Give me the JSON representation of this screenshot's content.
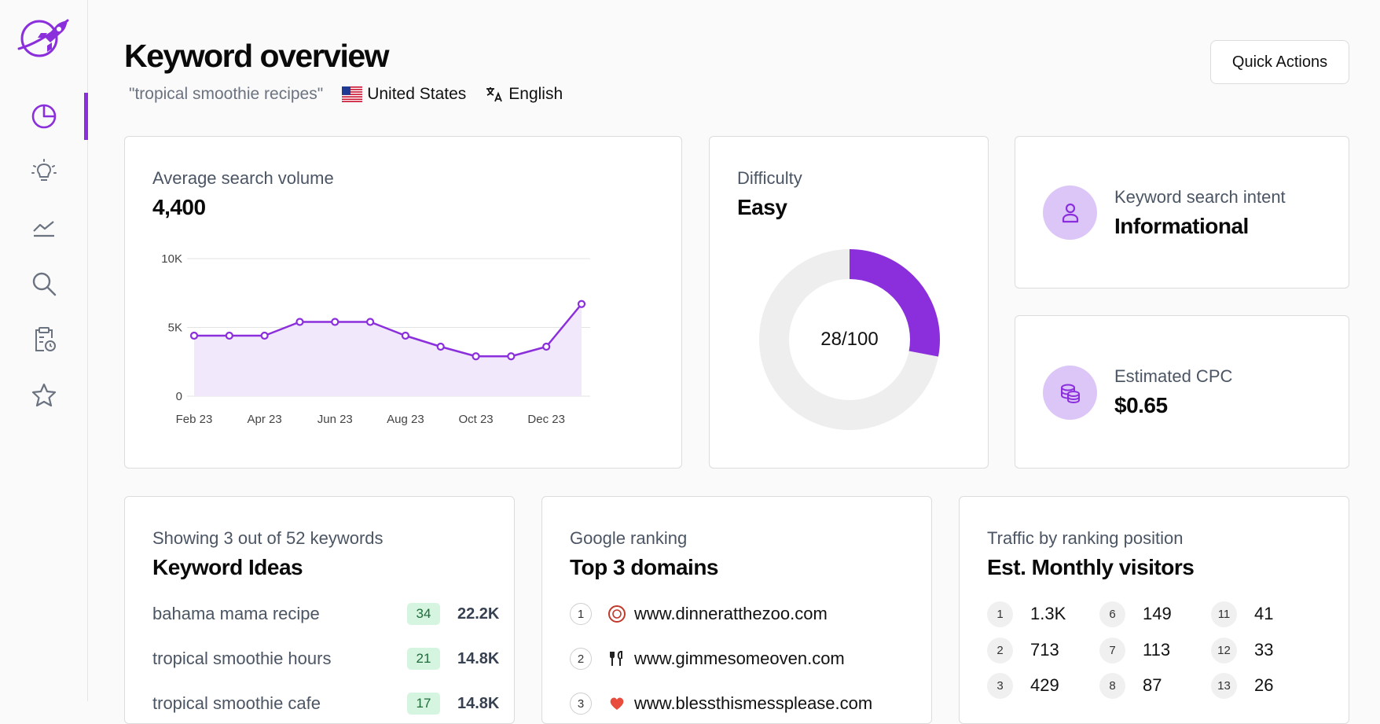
{
  "header": {
    "title": "Keyword overview",
    "keyword": "\"tropical smoothie recipes\"",
    "country": "United States",
    "language": "English",
    "quick_actions": "Quick Actions"
  },
  "sidebar": {
    "items": [
      {
        "name": "overview",
        "icon": "pie-chart-icon",
        "active": true
      },
      {
        "name": "ideas",
        "icon": "lightbulb-icon",
        "active": false
      },
      {
        "name": "trends",
        "icon": "trend-line-icon",
        "active": false
      },
      {
        "name": "search",
        "icon": "search-icon",
        "active": false
      },
      {
        "name": "reports",
        "icon": "clipboard-clock-icon",
        "active": false
      },
      {
        "name": "favorites",
        "icon": "star-icon",
        "active": false
      }
    ],
    "accent": "#8b2fdc"
  },
  "search_volume": {
    "label": "Average search volume",
    "value": "4,400"
  },
  "chart_data": {
    "type": "area",
    "x": [
      "Feb 23",
      "Mar 23",
      "Apr 23",
      "May 23",
      "Jun 23",
      "Jul 23",
      "Aug 23",
      "Sep 23",
      "Oct 23",
      "Nov 23",
      "Dec 23",
      "Jan 24"
    ],
    "x_tick_labels": [
      "Feb 23",
      "Apr 23",
      "Jun 23",
      "Aug 23",
      "Oct 23",
      "Dec 23"
    ],
    "y_tick_labels": [
      "0",
      "5K",
      "10K"
    ],
    "values": [
      4400,
      4400,
      4400,
      5400,
      5400,
      5400,
      4400,
      3600,
      2900,
      2900,
      3600,
      6700
    ],
    "ylim": [
      0,
      10000
    ],
    "grid": true,
    "color": "#8b2fdc"
  },
  "difficulty": {
    "label": "Difficulty",
    "value": "Easy",
    "score": 28,
    "max": 100,
    "score_text": "28/100"
  },
  "intent": {
    "label": "Keyword search intent",
    "value": "Informational"
  },
  "cpc": {
    "label": "Estimated CPC",
    "value": "$0.65"
  },
  "keyword_ideas": {
    "label": "Showing 3 out of 52 keywords",
    "title": "Keyword Ideas",
    "items": [
      {
        "keyword": "bahama mama recipe",
        "kd": "34",
        "volume": "22.2K"
      },
      {
        "keyword": "tropical smoothie hours",
        "kd": "21",
        "volume": "14.8K"
      },
      {
        "keyword": "tropical smoothie cafe",
        "kd": "17",
        "volume": "14.8K"
      }
    ]
  },
  "domains": {
    "label": "Google ranking",
    "title": "Top 3 domains",
    "items": [
      {
        "rank": "1",
        "domain": "www.dinneratthezoo.com"
      },
      {
        "rank": "2",
        "domain": "www.gimmesomeoven.com"
      },
      {
        "rank": "3",
        "domain": "www.blessthismessplease.com"
      }
    ]
  },
  "traffic": {
    "label": "Traffic by ranking position",
    "title": "Est. Monthly visitors",
    "items": [
      {
        "pos": "1",
        "visitors": "1.3K"
      },
      {
        "pos": "2",
        "visitors": "713"
      },
      {
        "pos": "3",
        "visitors": "429"
      },
      {
        "pos": "6",
        "visitors": "149"
      },
      {
        "pos": "7",
        "visitors": "113"
      },
      {
        "pos": "8",
        "visitors": "87"
      },
      {
        "pos": "11",
        "visitors": "41"
      },
      {
        "pos": "12",
        "visitors": "33"
      },
      {
        "pos": "13",
        "visitors": "26"
      }
    ]
  }
}
